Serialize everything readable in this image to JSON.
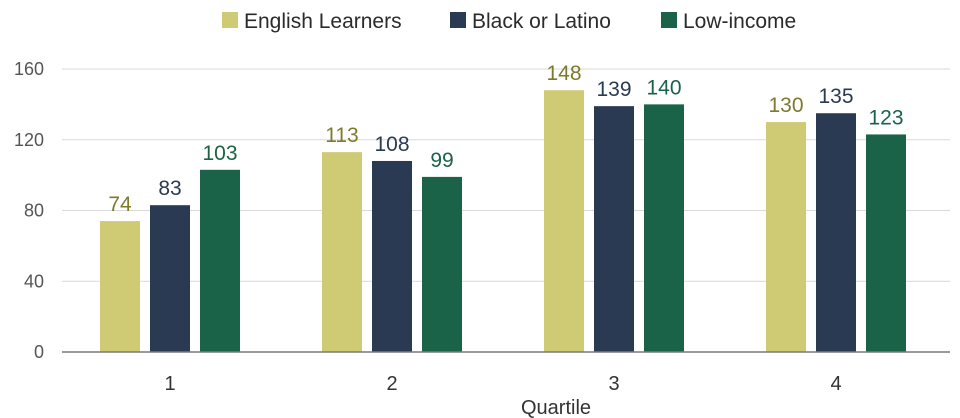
{
  "chart_data": {
    "type": "bar",
    "categories": [
      "1",
      "2",
      "3",
      "4"
    ],
    "series": [
      {
        "name": "English Learners",
        "values": [
          74,
          113,
          148,
          130
        ],
        "color": "#cfcb74",
        "label_color": "#7d7a2c"
      },
      {
        "name": "Black or Latino",
        "values": [
          83,
          108,
          139,
          135
        ],
        "color": "#293a52",
        "label_color": "#293a52"
      },
      {
        "name": "Low-income",
        "values": [
          103,
          99,
          140,
          123
        ],
        "color": "#1b6348",
        "label_color": "#1b6348"
      }
    ],
    "yticks": [
      "0",
      "40",
      "80",
      "120",
      "160"
    ],
    "ylim": [
      0,
      160
    ],
    "xlabel": "Quartile",
    "ylabel": "",
    "grid": true,
    "legend_position": "top-center"
  }
}
